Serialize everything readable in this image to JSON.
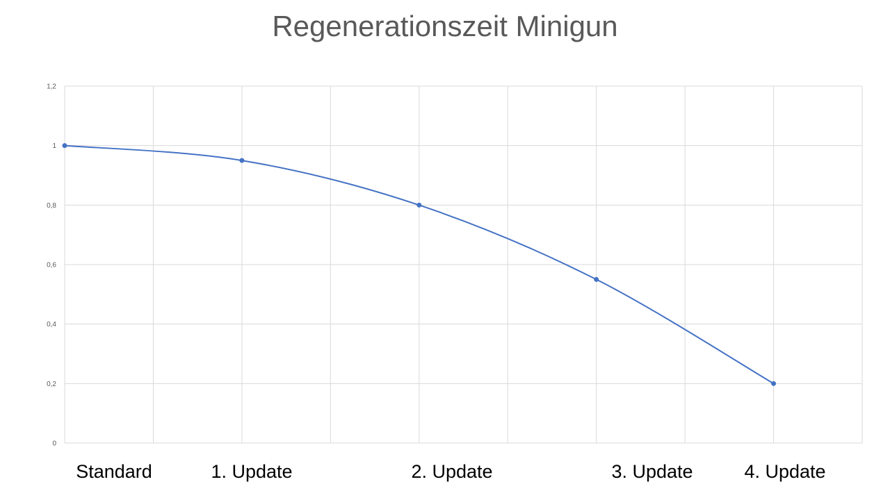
{
  "chart_data": {
    "type": "line",
    "title": "Regenerationszeit Minigun",
    "xlabel": "",
    "ylabel": "",
    "ylim": [
      0,
      1.2
    ],
    "y_ticks": [
      "0",
      "0,2",
      "0,4",
      "0,6",
      "0,8",
      "1",
      "1,2"
    ],
    "x_range": [
      0,
      9
    ],
    "grid": true,
    "legend": "none",
    "categories": [
      "Standard",
      "1. Update",
      "2. Update",
      "3. Update",
      "4. Update"
    ],
    "series": [
      {
        "x": [
          0,
          2,
          4,
          6,
          8
        ],
        "values": [
          1.0,
          0.95,
          0.8,
          0.55,
          0.2
        ],
        "color": "#4472C4"
      }
    ],
    "colors": {
      "line": "#4472C4",
      "grid": "#D9D9D9",
      "axis_text": "#595959",
      "title_text": "#595959"
    }
  }
}
